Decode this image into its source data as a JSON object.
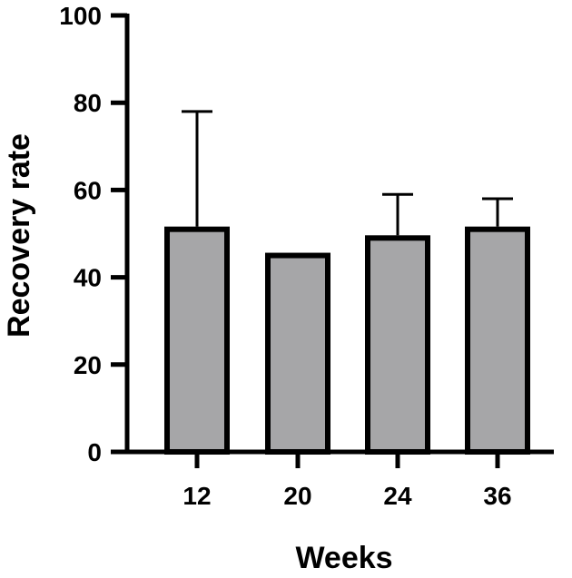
{
  "chart_data": {
    "type": "bar",
    "title": "",
    "xlabel": "Weeks",
    "ylabel": "Recovery rate",
    "categories": [
      "12",
      "20",
      "24",
      "36"
    ],
    "values": [
      51,
      45,
      49,
      51
    ],
    "error_upper": [
      78,
      45,
      59,
      58
    ],
    "ylim": [
      0,
      100
    ],
    "yticks": [
      "0",
      "20",
      "40",
      "60",
      "80",
      "100"
    ],
    "grid": false,
    "legend": "none",
    "bar_color": "#a6a6a8",
    "edge_color": "#000000"
  }
}
